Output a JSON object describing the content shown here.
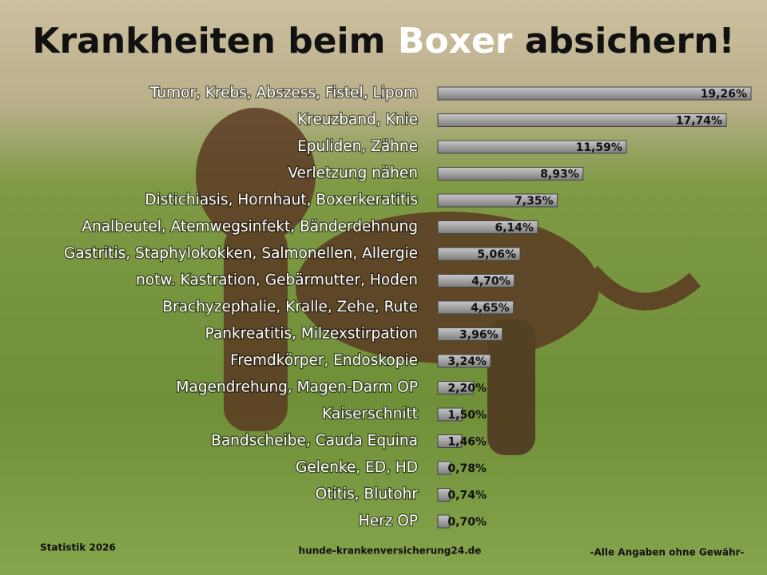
{
  "chart_data": {
    "type": "bar",
    "orientation": "horizontal",
    "title": [
      "Krankheiten beim",
      "Boxer",
      "absichern!"
    ],
    "categories": [
      "Tumor, Krebs, Abszess, Fistel, Lipom",
      "Kreuzband, Knie",
      "Epuliden, Zähne",
      "Verletzung nähen",
      "Distichiasis, Hornhaut, Boxerkeratitis",
      "Analbeutel, Atemwegsinfekt, Bänderdehnung",
      "Gastritis, Staphylokokken, Salmonellen, Allergie",
      "notw. Kastration, Gebärmutter, Hoden",
      "Brachyzephalie, Kralle, Zehe, Rute",
      "Pankreatitis, Milzexstirpation",
      "Fremdkörper, Endoskopie",
      "Magendrehung, Magen-Darm OP",
      "Kaiserschnitt",
      "Bandscheibe, Cauda Equina",
      "Gelenke, ED, HD",
      "Otitis, Blutohr",
      "Herz OP"
    ],
    "values": [
      19.26,
      17.74,
      11.59,
      8.93,
      7.35,
      6.14,
      5.06,
      4.7,
      4.65,
      3.96,
      3.24,
      2.2,
      1.5,
      1.46,
      0.78,
      0.74,
      0.7
    ],
    "value_labels": [
      "19,26%",
      "17,74%",
      "11,59%",
      "8,93%",
      "7,35%",
      "6,14%",
      "5,06%",
      "4,70%",
      "4,65%",
      "3,96%",
      "3,24%",
      "2,20%",
      "1,50%",
      "1,46%",
      "0,78%",
      "0,74%",
      "0,70%"
    ],
    "color": "#a3a3a3",
    "footer": [
      "Statistik 2026",
      "hunde-krankenversicherung24.de",
      "-Alle Angaben ohne Gewähr-"
    ]
  }
}
